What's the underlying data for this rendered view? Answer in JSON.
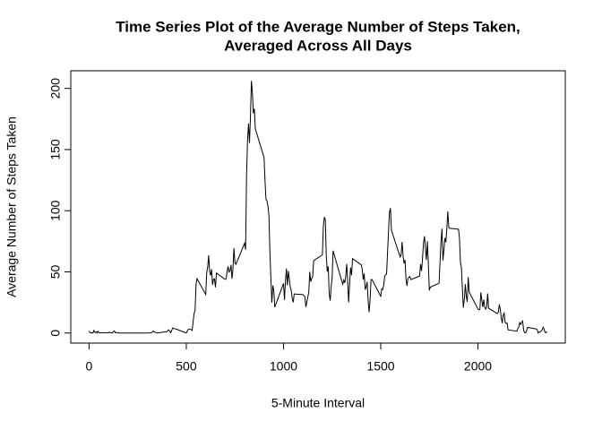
{
  "chart_data": {
    "type": "line",
    "title": [
      "Time Series Plot of the Average Number of Steps Taken,",
      "Averaged Across All Days"
    ],
    "x_label": "5-Minute Interval",
    "y_label": "Average Number of Steps Taken",
    "x": [
      0,
      5,
      10,
      15,
      20,
      25,
      30,
      35,
      40,
      45,
      50,
      55,
      100,
      105,
      110,
      115,
      120,
      125,
      130,
      135,
      140,
      145,
      150,
      155,
      200,
      230,
      300,
      320,
      330,
      340,
      350,
      400,
      410,
      420,
      430,
      440,
      450,
      500,
      510,
      520,
      530,
      540,
      545,
      550,
      555,
      600,
      605,
      610,
      615,
      620,
      625,
      630,
      635,
      640,
      645,
      650,
      655,
      700,
      705,
      710,
      715,
      720,
      725,
      730,
      735,
      740,
      745,
      750,
      755,
      800,
      805,
      810,
      815,
      820,
      825,
      830,
      835,
      840,
      845,
      850,
      855,
      900,
      905,
      910,
      915,
      920,
      925,
      930,
      935,
      940,
      945,
      950,
      955,
      1000,
      1005,
      1010,
      1015,
      1020,
      1025,
      1030,
      1035,
      1040,
      1045,
      1050,
      1055,
      1100,
      1110,
      1115,
      1120,
      1130,
      1135,
      1140,
      1145,
      1150,
      1155,
      1200,
      1205,
      1210,
      1215,
      1220,
      1225,
      1230,
      1235,
      1240,
      1245,
      1250,
      1255,
      1300,
      1305,
      1310,
      1315,
      1320,
      1325,
      1330,
      1335,
      1340,
      1345,
      1350,
      1355,
      1400,
      1405,
      1410,
      1415,
      1420,
      1425,
      1430,
      1435,
      1440,
      1445,
      1450,
      1455,
      1500,
      1505,
      1510,
      1515,
      1520,
      1525,
      1530,
      1535,
      1540,
      1545,
      1550,
      1555,
      1600,
      1605,
      1610,
      1615,
      1620,
      1625,
      1630,
      1635,
      1640,
      1645,
      1650,
      1655,
      1700,
      1705,
      1710,
      1715,
      1720,
      1725,
      1730,
      1735,
      1740,
      1745,
      1750,
      1755,
      1800,
      1805,
      1810,
      1815,
      1820,
      1825,
      1830,
      1835,
      1840,
      1845,
      1850,
      1855,
      1900,
      1905,
      1910,
      1915,
      1920,
      1925,
      1930,
      1935,
      1940,
      1945,
      1950,
      1955,
      2000,
      2005,
      2010,
      2015,
      2020,
      2025,
      2030,
      2035,
      2040,
      2045,
      2050,
      2055,
      2100,
      2105,
      2110,
      2115,
      2120,
      2125,
      2130,
      2135,
      2140,
      2145,
      2150,
      2155,
      2200,
      2205,
      2210,
      2215,
      2220,
      2225,
      2230,
      2235,
      2240,
      2245,
      2250,
      2255,
      2300,
      2305,
      2310,
      2315,
      2320,
      2325,
      2330,
      2335,
      2340,
      2345,
      2350,
      2355
    ],
    "series": [
      {
        "name": "steps",
        "color": "#000000",
        "values": [
          1.7,
          0.3,
          0.1,
          0.2,
          0.1,
          2.1,
          0.5,
          0.9,
          0,
          1.5,
          0.3,
          0.1,
          0.3,
          0.7,
          0.2,
          0.3,
          0,
          1.1,
          1.8,
          0.2,
          0.2,
          0.4,
          0.3,
          0,
          0,
          0,
          0,
          0.2,
          1.6,
          0.5,
          0,
          1.2,
          2.6,
          0.3,
          4.1,
          3.5,
          3.1,
          0,
          3,
          3.3,
          2.1,
          16,
          18.3,
          39.5,
          44.5,
          31.5,
          49.3,
          53.8,
          63.5,
          50,
          47.1,
          52.2,
          39.3,
          44,
          44.2,
          37.4,
          49,
          43.8,
          44.4,
          50.5,
          54.5,
          49.9,
          50.9,
          55.7,
          44.3,
          52.3,
          69.5,
          57.8,
          56.2,
          73.4,
          68.2,
          129.4,
          157.5,
          171.2,
          155.4,
          177.3,
          206.2,
          195.9,
          179.6,
          183.4,
          167,
          143.5,
          124,
          109.1,
          108.1,
          103.7,
          96,
          66.2,
          45.2,
          24.8,
          38.8,
          35,
          21.1,
          40.6,
          27,
          42.4,
          52.7,
          38.9,
          50.8,
          44.3,
          37.4,
          34.7,
          28.3,
          25.1,
          31.9,
          31.4,
          29.7,
          21.3,
          25.5,
          33.4,
          50,
          42,
          44.6,
          46,
          59.2,
          63.9,
          87.6,
          94.8,
          92.8,
          63.4,
          50.2,
          54.5,
          32.4,
          26.5,
          37.7,
          45,
          67.3,
          42.3,
          39.9,
          43.3,
          41,
          46.2,
          56.4,
          42.8,
          25.1,
          40,
          53.5,
          47.3,
          60.8,
          55.8,
          51.9,
          43.6,
          48.7,
          35.5,
          37.5,
          41.8,
          27.5,
          17.1,
          26.1,
          43.6,
          43.8,
          30,
          36.1,
          35.5,
          38.8,
          46,
          47.8,
          48.1,
          65.3,
          82.9,
          98.7,
          102.1,
          84,
          62.1,
          64.1,
          74.5,
          63.2,
          56.9,
          59.8,
          43.9,
          38.6,
          44.7,
          45.5,
          46.2,
          43.7,
          46.6,
          56.3,
          50.7,
          61.2,
          73.4,
          79.1,
          68.9,
          59.7,
          75.1,
          56.5,
          34.8,
          37.5,
          40.7,
          58,
          74.7,
          85.3,
          59.3,
          67.8,
          77.7,
          74.2,
          85.3,
          99.5,
          86.6,
          85.6,
          84.9,
          77.8,
          58,
          53.4,
          36.3,
          20.7,
          27.4,
          40,
          30.2,
          25.5,
          45.7,
          33.5,
          19.6,
          19,
          19.3,
          33.3,
          26.8,
          21.2,
          27.3,
          21.3,
          19.5,
          21.3,
          32.3,
          20.2,
          15.9,
          17.2,
          23.5,
          19.2,
          12.5,
          8,
          14.7,
          16.3,
          8.7,
          7.8,
          8.1,
          2.6,
          1.5,
          3.7,
          4.8,
          8.5,
          7.1,
          8.7,
          9.8,
          2.2,
          0.3,
          0.1,
          1.6,
          4.6,
          3.3,
          2.8,
          0,
          0.8,
          1,
          1.6,
          2.6,
          4.7,
          3.3,
          0.6,
          0.2,
          1.1
        ]
      }
    ],
    "xlim": [
      -94.2,
      2449.2
    ],
    "xticks": [
      0,
      500,
      1000,
      1500,
      2000
    ],
    "ylim": [
      -8.25,
      214.42
    ],
    "yticks": [
      0,
      50,
      100,
      150,
      200
    ]
  }
}
